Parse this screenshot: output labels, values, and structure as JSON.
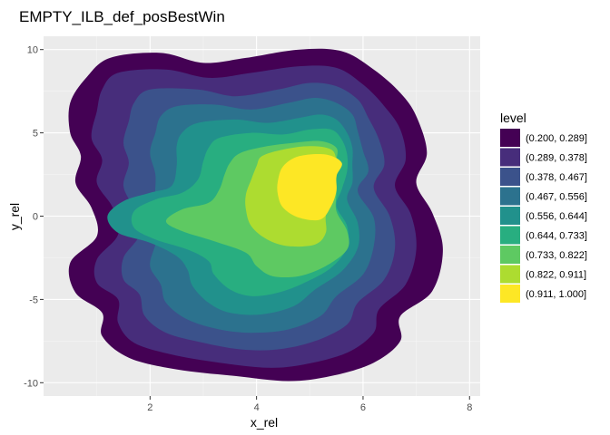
{
  "chart_data": {
    "type": "contour",
    "title": "EMPTY_ILB_def_posBestWin",
    "xlabel": "x_rel",
    "ylabel": "y_rel",
    "xlim": [
      0.0,
      8.2
    ],
    "ylim": [
      -10.8,
      10.8
    ],
    "x_ticks": [
      2,
      4,
      6,
      8
    ],
    "x_tick_labels": [
      "2",
      "4",
      "6",
      "8"
    ],
    "y_ticks": [
      -10,
      -5,
      0,
      5,
      10
    ],
    "y_tick_labels": [
      "-10",
      "-5",
      "0",
      "5",
      "10"
    ],
    "grid": true,
    "legend": {
      "title": "level",
      "position": "right",
      "entries": [
        {
          "label": "(0.200, 0.289]",
          "color": "#440154"
        },
        {
          "label": "(0.289, 0.378]",
          "color": "#472d7b"
        },
        {
          "label": "(0.378, 0.467]",
          "color": "#3b528b"
        },
        {
          "label": "(0.467, 0.556]",
          "color": "#2c728e"
        },
        {
          "label": "(0.556, 0.644]",
          "color": "#21918c"
        },
        {
          "label": "(0.644, 0.733]",
          "color": "#28ae80"
        },
        {
          "label": "(0.733, 0.822]",
          "color": "#5ec962"
        },
        {
          "label": "(0.822, 0.911]",
          "color": "#addc30"
        },
        {
          "label": "(0.911, 1.000]",
          "color": "#fde725"
        }
      ]
    },
    "bands": [
      {
        "level": 0.2,
        "color": "#440154",
        "points": [
          [
            1.25,
            9.5
          ],
          [
            2.2,
            9.8
          ],
          [
            3.0,
            9.2
          ],
          [
            3.8,
            9.5
          ],
          [
            4.8,
            10.0
          ],
          [
            5.6,
            9.9
          ],
          [
            6.2,
            8.8
          ],
          [
            6.7,
            7.4
          ],
          [
            7.0,
            6.0
          ],
          [
            7.2,
            3.8
          ],
          [
            7.0,
            2.0
          ],
          [
            7.3,
            0.2
          ],
          [
            7.5,
            -2.0
          ],
          [
            7.3,
            -4.5
          ],
          [
            6.7,
            -6.0
          ],
          [
            6.7,
            -7.5
          ],
          [
            6.2,
            -8.8
          ],
          [
            5.4,
            -9.6
          ],
          [
            4.6,
            -9.9
          ],
          [
            3.6,
            -9.6
          ],
          [
            2.5,
            -9.2
          ],
          [
            1.6,
            -8.5
          ],
          [
            1.1,
            -7.2
          ],
          [
            1.1,
            -5.8
          ],
          [
            0.6,
            -4.6
          ],
          [
            0.5,
            -2.8
          ],
          [
            1.0,
            -1.2
          ],
          [
            0.9,
            0.5
          ],
          [
            0.6,
            2.0
          ],
          [
            0.7,
            3.6
          ],
          [
            0.5,
            5.0
          ],
          [
            0.5,
            6.8
          ],
          [
            0.8,
            8.3
          ]
        ]
      },
      {
        "level": 0.289,
        "color": "#472d7b",
        "points": [
          [
            1.4,
            8.6
          ],
          [
            2.3,
            8.8
          ],
          [
            3.1,
            8.3
          ],
          [
            3.9,
            8.6
          ],
          [
            4.8,
            9.0
          ],
          [
            5.5,
            8.9
          ],
          [
            6.0,
            7.9
          ],
          [
            6.4,
            6.6
          ],
          [
            6.7,
            5.2
          ],
          [
            6.8,
            3.4
          ],
          [
            6.6,
            1.8
          ],
          [
            6.9,
            0.1
          ],
          [
            7.0,
            -2.0
          ],
          [
            6.8,
            -4.1
          ],
          [
            6.3,
            -5.6
          ],
          [
            6.2,
            -7.0
          ],
          [
            5.7,
            -8.2
          ],
          [
            4.9,
            -8.9
          ],
          [
            4.2,
            -9.1
          ],
          [
            3.3,
            -8.8
          ],
          [
            2.4,
            -8.3
          ],
          [
            1.7,
            -7.6
          ],
          [
            1.4,
            -6.4
          ],
          [
            1.4,
            -5.0
          ],
          [
            1.0,
            -4.0
          ],
          [
            1.0,
            -2.6
          ],
          [
            1.4,
            -1.1
          ],
          [
            1.3,
            0.5
          ],
          [
            1.0,
            2.0
          ],
          [
            1.1,
            3.4
          ],
          [
            0.9,
            4.7
          ],
          [
            1.0,
            6.3
          ],
          [
            1.1,
            7.6
          ]
        ]
      },
      {
        "level": 0.378,
        "color": "#3b528b",
        "points": [
          [
            2.0,
            7.6
          ],
          [
            2.9,
            7.6
          ],
          [
            3.6,
            7.2
          ],
          [
            4.4,
            7.6
          ],
          [
            5.0,
            8.0
          ],
          [
            5.5,
            7.8
          ],
          [
            5.9,
            7.0
          ],
          [
            6.1,
            5.9
          ],
          [
            6.3,
            4.6
          ],
          [
            6.4,
            3.1
          ],
          [
            6.2,
            1.7
          ],
          [
            6.5,
            0.0
          ],
          [
            6.6,
            -1.9
          ],
          [
            6.4,
            -3.8
          ],
          [
            5.9,
            -5.2
          ],
          [
            5.7,
            -6.5
          ],
          [
            5.1,
            -7.5
          ],
          [
            4.4,
            -8.0
          ],
          [
            3.7,
            -8.0
          ],
          [
            3.0,
            -7.6
          ],
          [
            2.3,
            -7.0
          ],
          [
            1.9,
            -6.0
          ],
          [
            1.8,
            -4.7
          ],
          [
            1.5,
            -3.8
          ],
          [
            1.5,
            -2.5
          ],
          [
            1.8,
            -1.1
          ],
          [
            1.7,
            0.4
          ],
          [
            1.5,
            1.8
          ],
          [
            1.6,
            3.2
          ],
          [
            1.5,
            4.4
          ],
          [
            1.6,
            5.7
          ],
          [
            1.7,
            6.8
          ]
        ]
      },
      {
        "level": 0.467,
        "color": "#2c728e",
        "points": [
          [
            2.5,
            6.6
          ],
          [
            3.2,
            6.7
          ],
          [
            3.9,
            6.4
          ],
          [
            4.6,
            6.8
          ],
          [
            5.1,
            7.1
          ],
          [
            5.5,
            6.8
          ],
          [
            5.8,
            6.1
          ],
          [
            5.9,
            5.1
          ],
          [
            6.0,
            3.9
          ],
          [
            6.1,
            2.7
          ],
          [
            5.9,
            1.5
          ],
          [
            6.2,
            -0.1
          ],
          [
            6.2,
            -1.8
          ],
          [
            6.0,
            -3.5
          ],
          [
            5.5,
            -4.8
          ],
          [
            5.2,
            -6.0
          ],
          [
            4.6,
            -6.8
          ],
          [
            3.9,
            -7.0
          ],
          [
            3.3,
            -6.8
          ],
          [
            2.7,
            -6.2
          ],
          [
            2.3,
            -5.2
          ],
          [
            2.2,
            -4.1
          ],
          [
            2.0,
            -3.0
          ],
          [
            2.1,
            -1.7
          ],
          [
            2.2,
            -0.4
          ],
          [
            2.1,
            1.0
          ],
          [
            2.1,
            2.5
          ],
          [
            2.0,
            3.8
          ],
          [
            2.1,
            5.0
          ],
          [
            2.2,
            6.0
          ]
        ]
      },
      {
        "level": 0.556,
        "color": "#21918c",
        "points": [
          [
            2.9,
            5.6
          ],
          [
            3.6,
            5.8
          ],
          [
            4.2,
            5.6
          ],
          [
            4.8,
            5.9
          ],
          [
            5.2,
            6.1
          ],
          [
            5.5,
            5.8
          ],
          [
            5.7,
            5.0
          ],
          [
            5.8,
            4.1
          ],
          [
            5.8,
            3.1
          ],
          [
            5.8,
            2.0
          ],
          [
            5.7,
            1.0
          ],
          [
            5.9,
            -0.4
          ],
          [
            5.9,
            -1.9
          ],
          [
            5.6,
            -3.3
          ],
          [
            5.1,
            -4.4
          ],
          [
            4.7,
            -5.4
          ],
          [
            4.1,
            -5.9
          ],
          [
            3.5,
            -5.8
          ],
          [
            3.1,
            -5.2
          ],
          [
            2.8,
            -4.2
          ],
          [
            2.7,
            -3.2
          ],
          [
            2.5,
            -2.4
          ],
          [
            2.0,
            -1.6
          ],
          [
            1.4,
            -1.0
          ],
          [
            1.2,
            0.0
          ],
          [
            1.5,
            0.9
          ],
          [
            2.0,
            1.4
          ],
          [
            2.4,
            1.8
          ],
          [
            2.5,
            3.0
          ],
          [
            2.5,
            4.2
          ],
          [
            2.6,
            5.0
          ]
        ]
      },
      {
        "level": 0.644,
        "color": "#28ae80",
        "points": [
          [
            3.3,
            4.7
          ],
          [
            3.9,
            5.0
          ],
          [
            4.5,
            4.9
          ],
          [
            5.0,
            5.2
          ],
          [
            5.4,
            5.2
          ],
          [
            5.6,
            4.6
          ],
          [
            5.7,
            3.7
          ],
          [
            5.7,
            2.7
          ],
          [
            5.6,
            1.6
          ],
          [
            5.5,
            0.6
          ],
          [
            5.7,
            -0.6
          ],
          [
            5.7,
            -1.9
          ],
          [
            5.4,
            -3.1
          ],
          [
            4.9,
            -4.0
          ],
          [
            4.4,
            -4.6
          ],
          [
            3.9,
            -4.8
          ],
          [
            3.5,
            -4.4
          ],
          [
            3.2,
            -3.5
          ],
          [
            3.1,
            -2.7
          ],
          [
            2.7,
            -2.0
          ],
          [
            2.1,
            -1.4
          ],
          [
            1.7,
            -0.7
          ],
          [
            1.7,
            0.3
          ],
          [
            2.1,
            1.0
          ],
          [
            2.6,
            1.4
          ],
          [
            2.9,
            2.2
          ],
          [
            3.0,
            3.3
          ],
          [
            3.1,
            4.1
          ]
        ]
      },
      {
        "level": 0.733,
        "color": "#5ec962",
        "points": [
          [
            3.7,
            3.8
          ],
          [
            4.2,
            4.2
          ],
          [
            4.7,
            4.4
          ],
          [
            5.2,
            4.5
          ],
          [
            5.5,
            4.1
          ],
          [
            5.5,
            3.3
          ],
          [
            5.5,
            2.4
          ],
          [
            5.5,
            1.4
          ],
          [
            5.5,
            0.3
          ],
          [
            5.7,
            -0.9
          ],
          [
            5.7,
            -2.0
          ],
          [
            5.3,
            -3.0
          ],
          [
            4.8,
            -3.6
          ],
          [
            4.3,
            -3.6
          ],
          [
            4.0,
            -3.0
          ],
          [
            3.8,
            -2.2
          ],
          [
            3.2,
            -1.5
          ],
          [
            2.6,
            -0.9
          ],
          [
            2.3,
            -0.3
          ],
          [
            2.6,
            0.4
          ],
          [
            3.1,
            0.8
          ],
          [
            3.3,
            1.6
          ],
          [
            3.4,
            2.5
          ],
          [
            3.5,
            3.2
          ]
        ]
      },
      {
        "level": 0.822,
        "color": "#addc30",
        "points": [
          [
            4.1,
            3.6
          ],
          [
            4.5,
            4.0
          ],
          [
            5.0,
            4.2
          ],
          [
            5.4,
            4.0
          ],
          [
            5.5,
            3.3
          ],
          [
            5.5,
            2.3
          ],
          [
            5.4,
            1.2
          ],
          [
            5.3,
            0.0
          ],
          [
            5.3,
            -1.0
          ],
          [
            5.1,
            -1.7
          ],
          [
            4.6,
            -1.8
          ],
          [
            4.2,
            -1.4
          ],
          [
            3.9,
            -0.6
          ],
          [
            3.8,
            0.4
          ],
          [
            3.8,
            1.3
          ],
          [
            3.9,
            2.2
          ],
          [
            4.0,
            3.0
          ]
        ]
      },
      {
        "level": 0.911,
        "color": "#fde725",
        "points": [
          [
            4.5,
            3.0
          ],
          [
            4.8,
            3.6
          ],
          [
            5.3,
            3.7
          ],
          [
            5.6,
            3.2
          ],
          [
            5.5,
            2.4
          ],
          [
            5.5,
            1.5
          ],
          [
            5.4,
            0.6
          ],
          [
            5.2,
            -0.2
          ],
          [
            4.8,
            -0.1
          ],
          [
            4.5,
            0.5
          ],
          [
            4.4,
            1.3
          ],
          [
            4.4,
            2.1
          ]
        ]
      }
    ]
  }
}
